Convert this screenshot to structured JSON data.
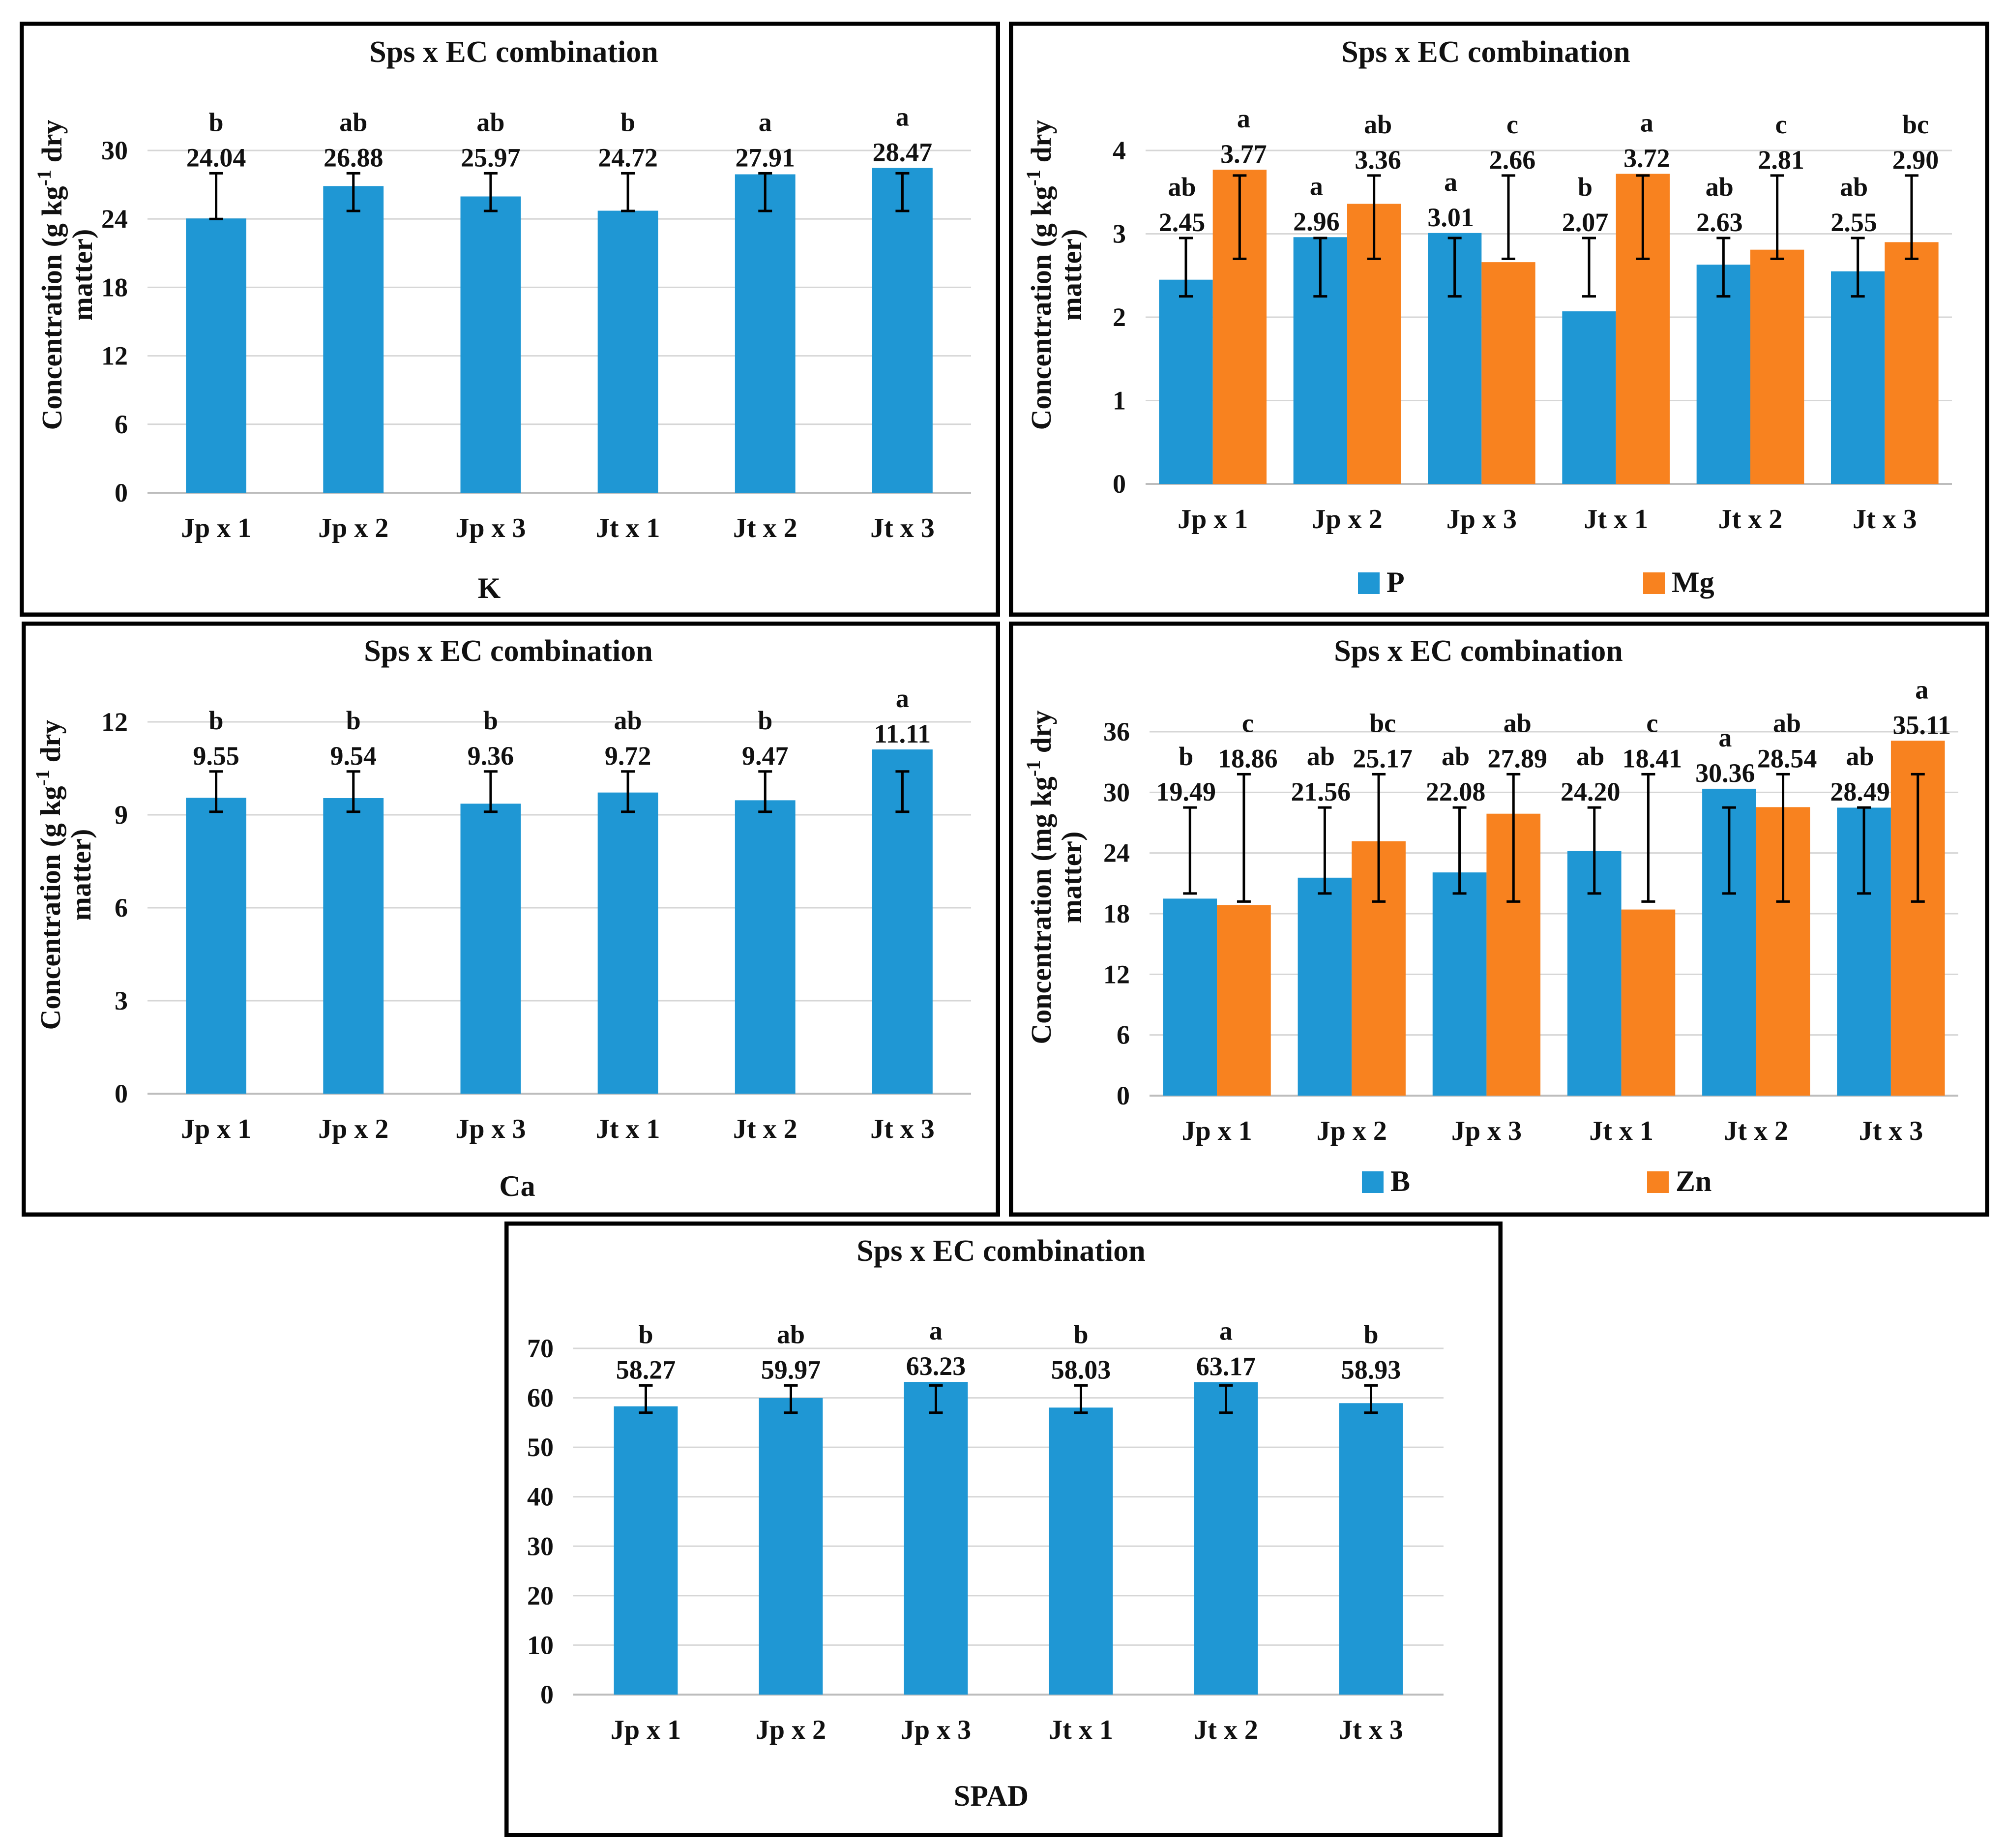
{
  "colors": {
    "primary": "#1f97d4",
    "secondary": "#f8821f",
    "grid": "#d6d6d6",
    "axis": "#bdbdbd",
    "frame": "#000000"
  },
  "chart_data": [
    {
      "id": "K",
      "type": "bar",
      "title": "Sps x EC combination",
      "xlabel": "K",
      "ylabel_lines": [
        "Concentration (g kg",
        "matter)"
      ],
      "ylabel_unit": {
        "base": "Concentration (g kg",
        "sup": "-1",
        "tail": " dry"
      },
      "categories": [
        "Jp x 1",
        "Jp x 2",
        "Jp x 3",
        "Jt x 1",
        "Jt x 2",
        "Jt x 3"
      ],
      "ylim": [
        0,
        30
      ],
      "yticks": [
        "0",
        "6",
        "12",
        "18",
        "24",
        "30"
      ],
      "series": [
        {
          "name": "K",
          "values": [
            24.04,
            26.88,
            25.97,
            24.72,
            27.91,
            28.47
          ],
          "value_labels": [
            "24.04",
            "26.88",
            "25.97",
            "24.72",
            "27.91",
            "28.47"
          ],
          "letters": [
            "b",
            "ab",
            "ab",
            "b",
            "a",
            "a"
          ],
          "err_low": [
            24.0,
            24.7,
            24.7,
            24.7,
            24.7,
            24.7
          ],
          "err_high": [
            28.0,
            28.0,
            28.0,
            28.0,
            28.0,
            28.0
          ]
        }
      ],
      "legend": false
    },
    {
      "id": "PMg",
      "type": "bar",
      "title": "Sps x EC combination",
      "ylabel_unit": {
        "base": "Concentration (g kg",
        "sup": "-1",
        "tail": " dry"
      },
      "ylabel_lines": [
        "Concentration (g kg",
        "matter)"
      ],
      "categories": [
        "Jp x 1",
        "Jp x 2",
        "Jp x 3",
        "Jt x 1",
        "Jt x 2",
        "Jt x 3"
      ],
      "ylim": [
        0,
        4
      ],
      "yticks": [
        "0",
        "1",
        "2",
        "3",
        "4"
      ],
      "series": [
        {
          "name": "P",
          "values": [
            2.45,
            2.96,
            3.01,
            2.07,
            2.63,
            2.55
          ],
          "value_labels": [
            "2.45",
            "2.96",
            "3.01",
            "2.07",
            "2.63",
            "2.55"
          ],
          "letters": [
            "ab",
            "a",
            "a",
            "b",
            "ab",
            "ab"
          ],
          "err_low": [
            2.25,
            2.25,
            2.25,
            2.25,
            2.25,
            2.25
          ],
          "err_high": [
            2.95,
            2.95,
            2.95,
            2.95,
            2.95,
            2.95
          ]
        },
        {
          "name": "Mg",
          "values": [
            3.77,
            3.36,
            2.66,
            3.72,
            2.81,
            2.9
          ],
          "value_labels": [
            "3.77",
            "3.36",
            "2.66",
            "3.72",
            "2.81",
            "2.90"
          ],
          "letters": [
            "a",
            "ab",
            "c",
            "a",
            "c",
            "bc"
          ],
          "err_low": [
            2.7,
            2.7,
            2.7,
            2.7,
            2.7,
            2.7
          ],
          "err_high": [
            3.7,
            3.7,
            3.7,
            3.7,
            3.7,
            3.7
          ]
        }
      ],
      "legend": true
    },
    {
      "id": "Ca",
      "type": "bar",
      "title": "Sps x EC combination",
      "xlabel": "Ca",
      "ylabel_unit": {
        "base": "Concentration (g kg",
        "sup": "-1",
        "tail": " dry"
      },
      "ylabel_lines": [
        "Concentration (g kg",
        "matter)"
      ],
      "categories": [
        "Jp x 1",
        "Jp x 2",
        "Jp x 3",
        "Jt x 1",
        "Jt x 2",
        "Jt x 3"
      ],
      "ylim": [
        0,
        12
      ],
      "yticks": [
        "0",
        "3",
        "6",
        "9",
        "12"
      ],
      "series": [
        {
          "name": "Ca",
          "values": [
            9.55,
            9.54,
            9.36,
            9.72,
            9.47,
            11.11
          ],
          "value_labels": [
            "9.55",
            "9.54",
            "9.36",
            "9.72",
            "9.47",
            "11.11"
          ],
          "letters": [
            "b",
            "b",
            "b",
            "ab",
            "b",
            "a"
          ],
          "err_low": [
            9.1,
            9.1,
            9.1,
            9.1,
            9.1,
            9.1
          ],
          "err_high": [
            10.4,
            10.4,
            10.4,
            10.4,
            10.4,
            10.4
          ]
        }
      ],
      "legend": false
    },
    {
      "id": "BZn",
      "type": "bar",
      "title": "Sps x EC combination",
      "ylabel_unit": {
        "base": "Concentration (mg kg",
        "sup": "-1",
        "tail": " dry"
      },
      "ylabel_lines": [
        "Concentration (mg kg",
        "matter)"
      ],
      "categories": [
        "Jp x 1",
        "Jp x 2",
        "Jp x 3",
        "Jt x 1",
        "Jt x 2",
        "Jt x 3"
      ],
      "ylim": [
        0,
        36
      ],
      "yticks": [
        "0",
        "6",
        "12",
        "18",
        "24",
        "30",
        "36"
      ],
      "series": [
        {
          "name": "B",
          "values": [
            19.49,
            21.56,
            22.08,
            24.2,
            30.36,
            28.49
          ],
          "value_labels": [
            "19.49",
            "21.56",
            "22.08",
            "24.20",
            "30.36",
            "28.49"
          ],
          "letters": [
            "b",
            "ab",
            "ab",
            "ab",
            "a",
            "ab"
          ],
          "err_low": [
            20.0,
            20.0,
            20.0,
            20.0,
            20.0,
            20.0
          ],
          "err_high": [
            28.5,
            28.5,
            28.5,
            28.5,
            28.5,
            28.5
          ]
        },
        {
          "name": "Zn",
          "values": [
            18.86,
            25.17,
            27.89,
            18.41,
            28.54,
            35.11
          ],
          "value_labels": [
            "18.86",
            "25.17",
            "27.89",
            "18.41",
            "28.54",
            "35.11"
          ],
          "letters": [
            "c",
            "bc",
            "ab",
            "c",
            "ab",
            "a"
          ],
          "err_low": [
            19.2,
            19.2,
            19.2,
            19.2,
            19.2,
            19.2
          ],
          "err_high": [
            31.8,
            31.8,
            31.8,
            31.8,
            31.8,
            31.8
          ]
        }
      ],
      "legend": true
    },
    {
      "id": "SPAD",
      "type": "bar",
      "title": "Sps x EC combination",
      "xlabel": "SPAD",
      "categories": [
        "Jp x 1",
        "Jp x 2",
        "Jp x 3",
        "Jt x 1",
        "Jt x 2",
        "Jt x 3"
      ],
      "ylim": [
        0,
        70
      ],
      "yticks": [
        "0",
        "10",
        "20",
        "30",
        "40",
        "50",
        "60",
        "70"
      ],
      "series": [
        {
          "name": "SPAD",
          "values": [
            58.27,
            59.97,
            63.23,
            58.03,
            63.17,
            58.93
          ],
          "value_labels": [
            "58.27",
            "59.97",
            "63.23",
            "58.03",
            "63.17",
            "58.93"
          ],
          "letters": [
            "b",
            "ab",
            "a",
            "b",
            "a",
            "b"
          ],
          "err_low": [
            57.0,
            57.0,
            57.0,
            57.0,
            57.0,
            57.0
          ],
          "err_high": [
            62.5,
            62.5,
            62.5,
            62.5,
            62.5,
            62.5
          ]
        }
      ],
      "legend": false
    }
  ]
}
